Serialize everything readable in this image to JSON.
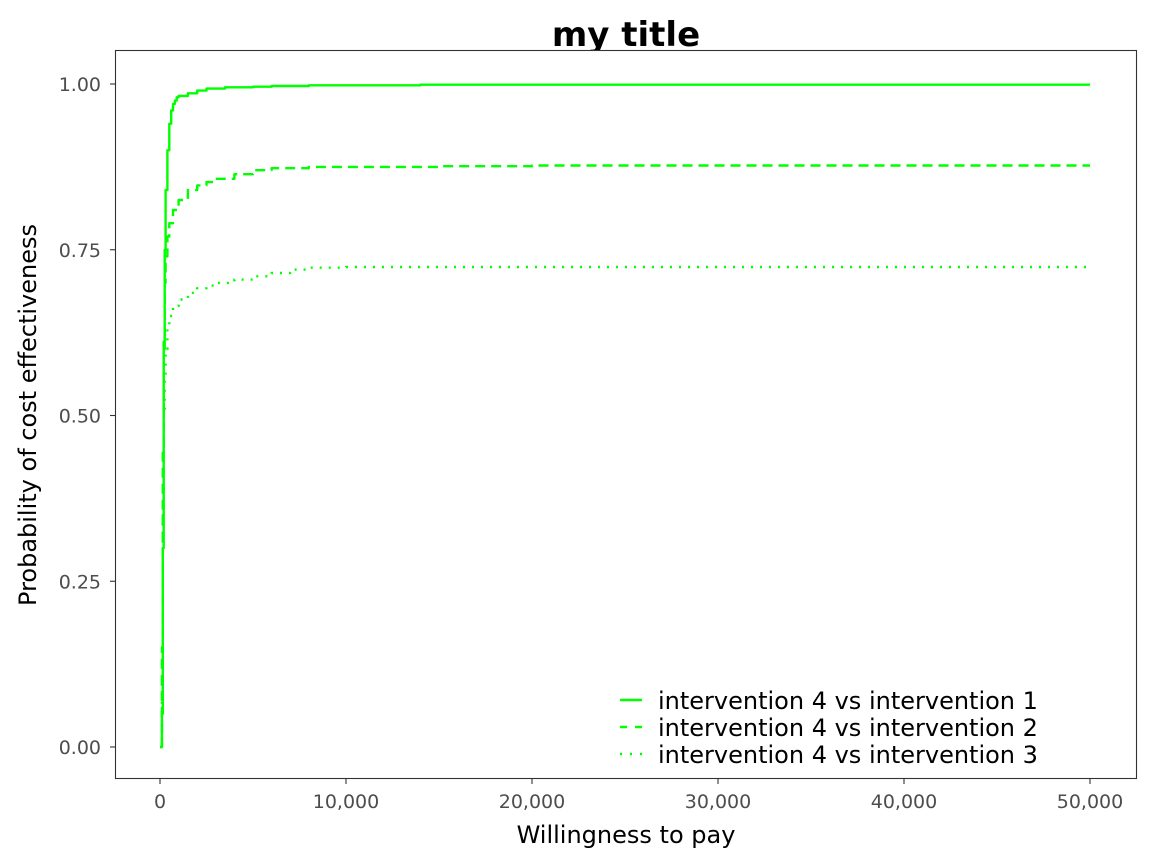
{
  "chart_data": {
    "type": "line",
    "title": "my title",
    "xlabel": "Willingness to pay",
    "ylabel": "Probability of cost effectiveness",
    "xlim": [
      0,
      50000
    ],
    "ylim": [
      0,
      1
    ],
    "xticks": [
      0,
      10000,
      20000,
      30000,
      40000,
      50000
    ],
    "xtick_labels": [
      "0",
      "10,000",
      "20,000",
      "30,000",
      "40,000",
      "50,000"
    ],
    "yticks": [
      0,
      0.25,
      0.5,
      0.75,
      1.0
    ],
    "ytick_labels": [
      "0.00",
      "0.25",
      "0.50",
      "0.75",
      "1.00"
    ],
    "grid": false,
    "legend_position": "bottom-right",
    "line_color": "#00ff00",
    "series": [
      {
        "name": "intervention 4 vs intervention 1",
        "linestyle": "solid",
        "x": [
          0,
          100,
          150,
          200,
          250,
          300,
          400,
          500,
          600,
          700,
          800,
          900,
          1000,
          1500,
          2000,
          2500,
          3500,
          5000,
          6000,
          8000,
          10000,
          14000,
          20000,
          30000,
          40000,
          50000
        ],
        "y": [
          0.0,
          0.05,
          0.3,
          0.6,
          0.75,
          0.84,
          0.9,
          0.94,
          0.96,
          0.97,
          0.975,
          0.98,
          0.982,
          0.986,
          0.99,
          0.993,
          0.995,
          0.996,
          0.997,
          0.998,
          0.998,
          0.999,
          0.999,
          0.999,
          0.999,
          0.999
        ]
      },
      {
        "name": "intervention 4 vs intervention 2",
        "linestyle": "dashed",
        "x": [
          0,
          100,
          150,
          200,
          250,
          300,
          400,
          500,
          700,
          1000,
          1500,
          2000,
          2500,
          3000,
          4000,
          5000,
          6000,
          8000,
          10000,
          15000,
          20000,
          30000,
          40000,
          50000
        ],
        "y": [
          0.0,
          0.15,
          0.45,
          0.62,
          0.7,
          0.74,
          0.77,
          0.79,
          0.81,
          0.825,
          0.84,
          0.847,
          0.852,
          0.857,
          0.864,
          0.87,
          0.873,
          0.875,
          0.875,
          0.876,
          0.877,
          0.877,
          0.877,
          0.877
        ]
      },
      {
        "name": "intervention 4 vs intervention 3",
        "linestyle": "dotted",
        "x": [
          0,
          100,
          150,
          200,
          250,
          300,
          400,
          500,
          700,
          1000,
          1500,
          2000,
          2500,
          3000,
          4000,
          5000,
          6000,
          7000,
          8000,
          10000,
          15000,
          20000,
          30000,
          40000,
          50000
        ],
        "y": [
          0.0,
          0.1,
          0.35,
          0.5,
          0.56,
          0.6,
          0.63,
          0.65,
          0.665,
          0.675,
          0.685,
          0.692,
          0.696,
          0.7,
          0.705,
          0.71,
          0.715,
          0.72,
          0.723,
          0.724,
          0.724,
          0.724,
          0.724,
          0.724,
          0.724
        ]
      }
    ]
  }
}
